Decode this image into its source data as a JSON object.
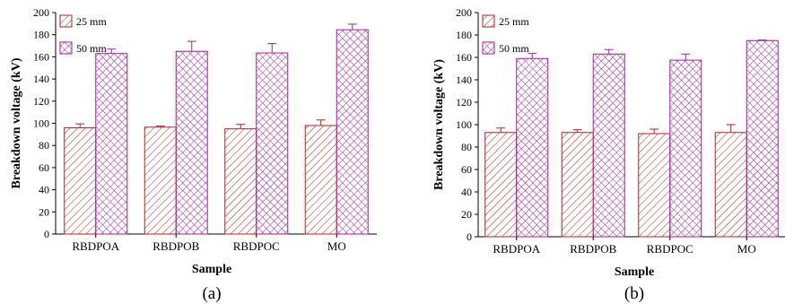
{
  "chart_data": [
    {
      "type": "bar",
      "caption": "(a)",
      "categories": [
        "RBDPOA",
        "RBDPOB",
        "RBDPOC",
        "MO"
      ],
      "series": [
        {
          "name": "25 mm",
          "values": [
            96,
            96.5,
            95,
            98
          ],
          "errors": [
            3.5,
            1,
            4,
            5
          ],
          "color": "#b22222"
        },
        {
          "name": "50 mm",
          "values": [
            163,
            165,
            163.5,
            184.5
          ],
          "errors": [
            4,
            9,
            8.5,
            5
          ],
          "color": "#a020a0"
        }
      ],
      "xlabel": "Sample",
      "ylabel": "Breakdown voltage (kV)",
      "ylim": [
        0,
        200
      ],
      "yticks": [
        0,
        20,
        40,
        60,
        80,
        100,
        120,
        140,
        160,
        180,
        200
      ],
      "legend": "top-left"
    },
    {
      "type": "bar",
      "caption": "(b)",
      "categories": [
        "RBDPOA",
        "RBDPOB",
        "RBDPOC",
        "MO"
      ],
      "series": [
        {
          "name": "25 mm",
          "values": [
            93,
            93,
            92,
            93
          ],
          "errors": [
            4,
            2.5,
            4,
            7
          ],
          "color": "#b22222"
        },
        {
          "name": "50 mm",
          "values": [
            159,
            163,
            157.5,
            175
          ],
          "errors": [
            4.5,
            4,
            5.5,
            0.5
          ],
          "color": "#a020a0"
        }
      ],
      "xlabel": "Sample",
      "ylabel": "Breakdown voltage (kV)",
      "ylim": [
        0,
        200
      ],
      "yticks": [
        0,
        20,
        40,
        60,
        80,
        100,
        120,
        140,
        160,
        180,
        200
      ],
      "legend": "top-left"
    }
  ]
}
